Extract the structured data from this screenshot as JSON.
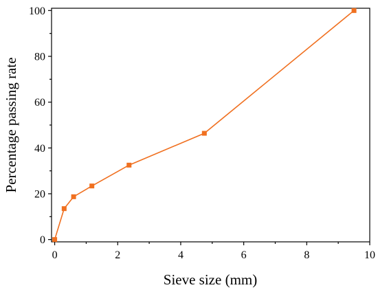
{
  "chart_data": {
    "type": "line",
    "title": "",
    "xlabel": "Sieve size (mm)",
    "ylabel": "Percentage passing rate",
    "xlim": [
      -0.1,
      10
    ],
    "ylim": [
      -1,
      101
    ],
    "xticks": [
      0,
      2,
      4,
      6,
      8,
      10
    ],
    "yticks": [
      0,
      20,
      40,
      60,
      80,
      100
    ],
    "xtick_labels": [
      "0",
      "2",
      "4",
      "6",
      "8",
      "10"
    ],
    "ytick_labels": [
      "0",
      "20",
      "40",
      "60",
      "80",
      "100"
    ],
    "grid": false,
    "legend": "none",
    "series": [
      {
        "color": "#f07020",
        "marker": "square",
        "x": [
          0,
          0.3,
          0.6,
          1.18,
          2.36,
          4.75,
          9.5
        ],
        "y": [
          0,
          13.5,
          18.7,
          23.4,
          32.5,
          46.4,
          100
        ]
      }
    ]
  }
}
